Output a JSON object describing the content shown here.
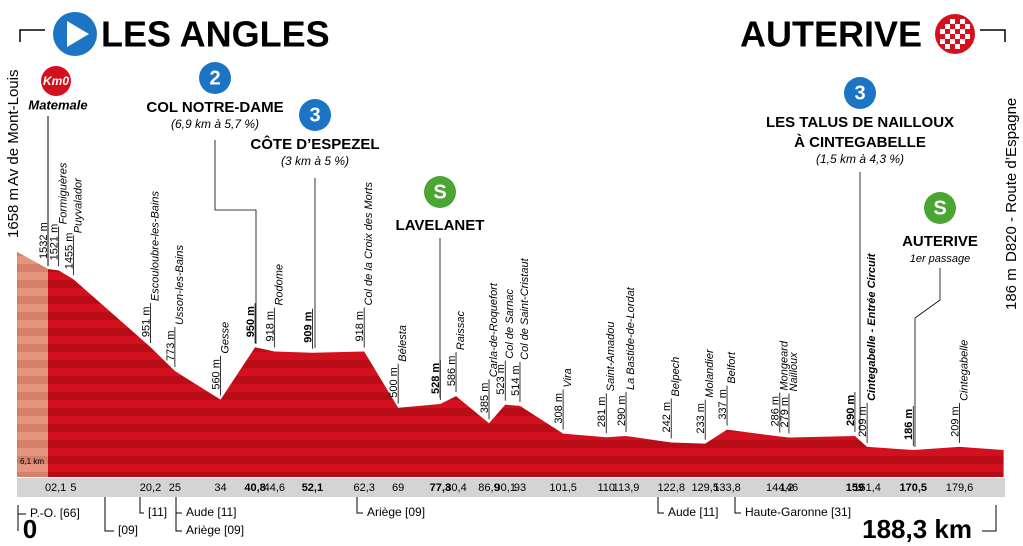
{
  "start": {
    "name": "LES ANGLES",
    "elevation": 1658,
    "elevation_label": "1658 m",
    "road": "Av de Mont-Louis",
    "km_label": "0",
    "neutral_km": -6.1,
    "neutral_label": "6,1 km",
    "department": "P.-O. [66]"
  },
  "finish": {
    "name": "AUTERIVE",
    "km": 188.3,
    "km_label": "188,3 km",
    "elevation": 186,
    "elevation_label": "186 m",
    "road": "D820 - Route d’Espagne"
  },
  "km0": {
    "badge": "Km0",
    "place": "Matemale"
  },
  "points": [
    {
      "km": 0,
      "elevation": 1532,
      "elevation_label": "1532 m"
    },
    {
      "name": "Formiguères",
      "km": 2.1,
      "km_label": "2,1",
      "elevation": 1521,
      "elevation_label": "1521 m"
    },
    {
      "name": "Puyvalador",
      "km": 5,
      "elevation": 1455,
      "elevation_label": "1455 m"
    },
    {
      "name": "Escouloubre-les-Bains",
      "km": 20.2,
      "km_label": "20,2",
      "elevation": 951,
      "elevation_label": "951 m"
    },
    {
      "name": "Usson-les-Bains",
      "km": 25,
      "elevation": 773,
      "elevation_label": "773 m"
    },
    {
      "name": "Gesse",
      "km": 34,
      "elevation": 560,
      "elevation_label": "560 m"
    },
    {
      "km": 40.8,
      "km_label": "40,8",
      "elevation": 950,
      "elevation_label": "950 m",
      "bold": true
    },
    {
      "name": "Rodome",
      "km": 44.6,
      "km_label": "44,6",
      "elevation": 918,
      "elevation_label": "918 m"
    },
    {
      "km": 52.1,
      "km_label": "52,1",
      "elevation": 909,
      "elevation_label": "909 m",
      "bold": true
    },
    {
      "name": "Col de la Croix des Morts",
      "km": 62.3,
      "km_label": "62,3",
      "elevation": 918,
      "elevation_label": "918 m"
    },
    {
      "name": "Bélesta",
      "km": 69,
      "elevation": 500,
      "elevation_label": "500 m"
    },
    {
      "km": 77.3,
      "km_label": "77,3",
      "elevation": 528,
      "elevation_label": "528 m",
      "bold": true
    },
    {
      "name": "Raissac",
      "km": 80.4,
      "km_label": "80,4",
      "elevation": 586,
      "elevation_label": "586 m"
    },
    {
      "name": "Carla-de-Roquefort",
      "km": 86.9,
      "km_label": "86,9",
      "elevation": 385,
      "elevation_label": "385 m"
    },
    {
      "name": "Col de Sarnac",
      "km": 90.1,
      "km_label": "90,1",
      "elevation": 523,
      "elevation_label": "523 m"
    },
    {
      "name": "Col de Saint-Cristaut",
      "km": 93,
      "elevation": 514,
      "elevation_label": "514 m"
    },
    {
      "name": "Vira",
      "km": 101.5,
      "km_label": "101,5",
      "elevation": 308,
      "elevation_label": "308 m"
    },
    {
      "name": "Saint-Amadou",
      "km": 110,
      "elevation": 281,
      "elevation_label": "281 m"
    },
    {
      "name": "La Bastide-de-Lordat",
      "km": 113.9,
      "km_label": "113,9",
      "elevation": 290,
      "elevation_label": "290 m"
    },
    {
      "name": "Belpech",
      "km": 122.8,
      "km_label": "122,8",
      "elevation": 242,
      "elevation_label": "242 m"
    },
    {
      "name": "Molandier",
      "km": 129.5,
      "km_label": "129,5",
      "elevation": 233,
      "elevation_label": "233 m"
    },
    {
      "name": "Belfort",
      "km": 133.8,
      "km_label": "133,8",
      "elevation": 337,
      "elevation_label": "337 m"
    },
    {
      "name": "Mongeard",
      "km": 144.2,
      "km_label": "144,2",
      "elevation": 286,
      "elevation_label": "286 m"
    },
    {
      "name": "Nailloux",
      "km": 146,
      "elevation": 279,
      "elevation_label": "279 m"
    },
    {
      "km": 159,
      "elevation": 290,
      "elevation_label": "290 m",
      "bold": true
    },
    {
      "name": "Cintegabelle - Entrée Circuit",
      "km": 161.4,
      "km_label": "161,4",
      "elevation": 209,
      "elevation_label": "209 m"
    },
    {
      "km": 170.5,
      "km_label": "170,5",
      "elevation": 186,
      "elevation_label": "186 m",
      "bold": true
    },
    {
      "name": "Cintegabelle",
      "km": 179.6,
      "km_label": "179,6",
      "elevation": 209,
      "elevation_label": "209 m"
    }
  ],
  "climbs": [
    {
      "category": "2",
      "name": [
        "COL NOTRE-DAME"
      ],
      "detail": "(6,9 km à 5,7 %)"
    },
    {
      "category": "3",
      "name": [
        "CÔTE D’ESPEZEL"
      ],
      "detail": "(3 km à 5 %)"
    },
    {
      "category": "3",
      "name": [
        "LES TALUS DE NAILLOUX",
        "À CINTEGABELLE"
      ],
      "detail": "(1,5 km à 4,3 %)"
    }
  ],
  "sprints": [
    {
      "badge": "S",
      "name": "LAVELANET"
    },
    {
      "badge": "S",
      "name": "AUTERIVE",
      "note": "1er passage"
    }
  ],
  "departments": [
    "[09]",
    "[11]",
    "Aude [11]",
    "Ariège [09]",
    "Ariège [09]",
    "Aude [11]",
    "Haute-Garonne [31]"
  ]
}
